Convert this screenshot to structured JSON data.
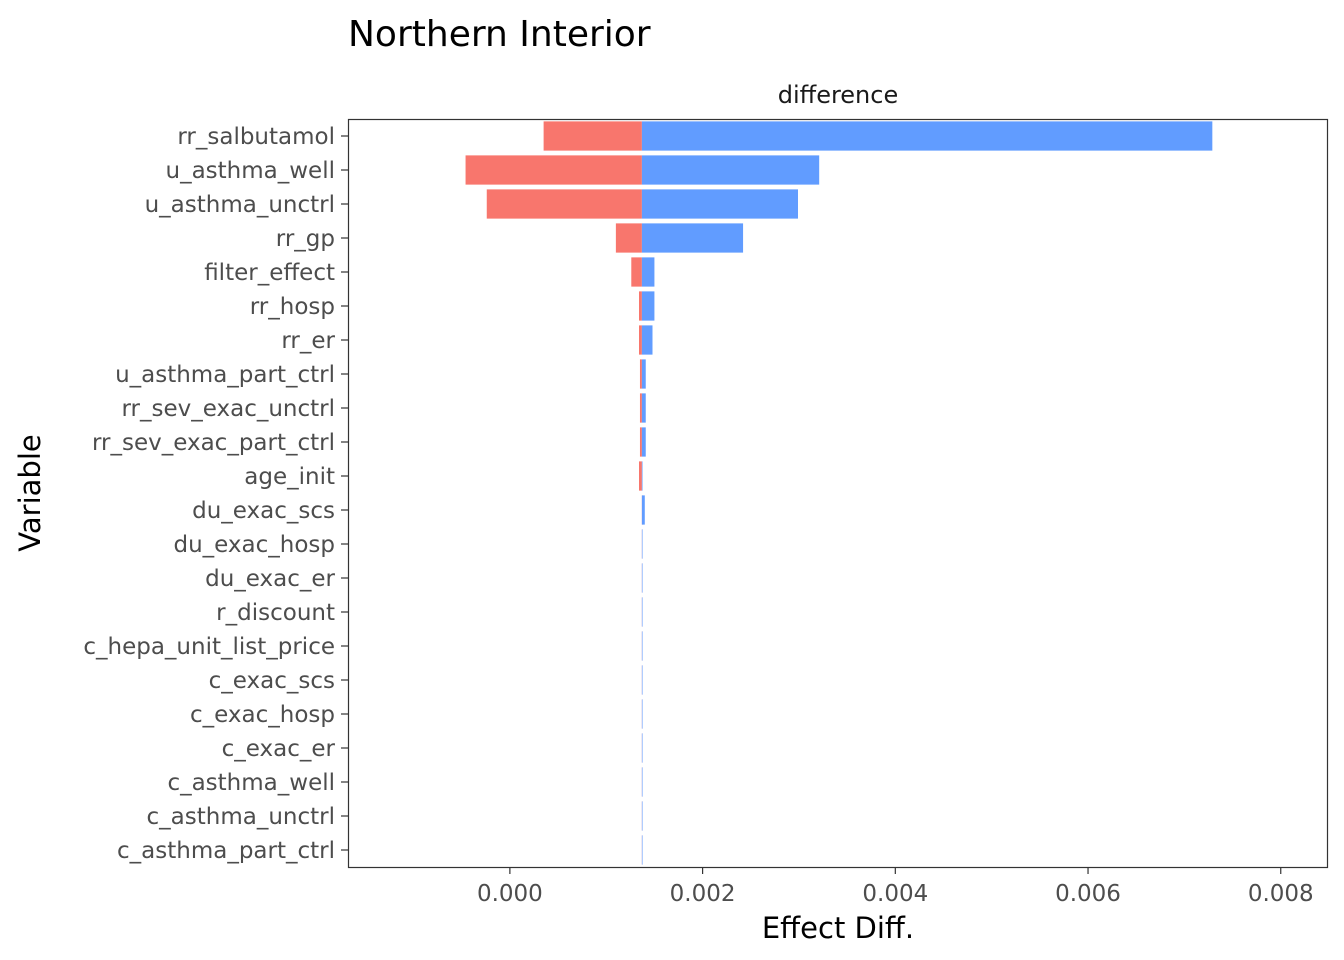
{
  "chart_data": {
    "type": "bar",
    "orientation": "horizontal",
    "title": "Northern Interior",
    "facet_label": "difference",
    "xlabel": "Effect Diff.",
    "ylabel": "Variable",
    "xlim": [
      -0.00168,
      0.00848
    ],
    "xticks": [
      "0.000",
      "0.002",
      "0.004",
      "0.006",
      "0.008"
    ],
    "xtick_values": [
      0,
      0.002,
      0.004,
      0.006,
      0.008
    ],
    "baseline": 0.00137,
    "grid": false,
    "colors": {
      "low": "#F8766D",
      "high": "#619CFF"
    },
    "categories": [
      "rr_salbutamol",
      "u_asthma_well",
      "u_asthma_unctrl",
      "rr_gp",
      "filter_effect",
      "rr_hosp",
      "rr_er",
      "u_asthma_part_ctrl",
      "rr_sev_exac_unctrl",
      "rr_sev_exac_part_ctrl",
      "age_init",
      "du_exac_scs",
      "du_exac_hosp",
      "du_exac_er",
      "r_discount",
      "c_hepa_unit_list_price",
      "c_exac_scs",
      "c_exac_hosp",
      "c_exac_er",
      "c_asthma_well",
      "c_asthma_unctrl",
      "c_asthma_part_ctrl"
    ],
    "series": [
      {
        "values": [
          0.00035,
          -0.00046,
          -0.00024,
          0.0011,
          0.00126,
          0.00134,
          0.00134,
          0.00135,
          0.00135,
          0.00135,
          0.00134,
          0.00137,
          0.00137,
          0.00137,
          0.00137,
          0.00137,
          0.00137,
          0.00137,
          0.00137,
          0.00137,
          0.00137,
          0.00137
        ]
      },
      {
        "values": [
          0.00729,
          0.00321,
          0.00299,
          0.00242,
          0.0015,
          0.0015,
          0.00148,
          0.00141,
          0.00141,
          0.00141,
          0.00137,
          0.0014,
          0.00137,
          0.00137,
          0.00137,
          0.00137,
          0.00137,
          0.00137,
          0.00137,
          0.00137,
          0.00137,
          0.00137
        ]
      }
    ]
  }
}
